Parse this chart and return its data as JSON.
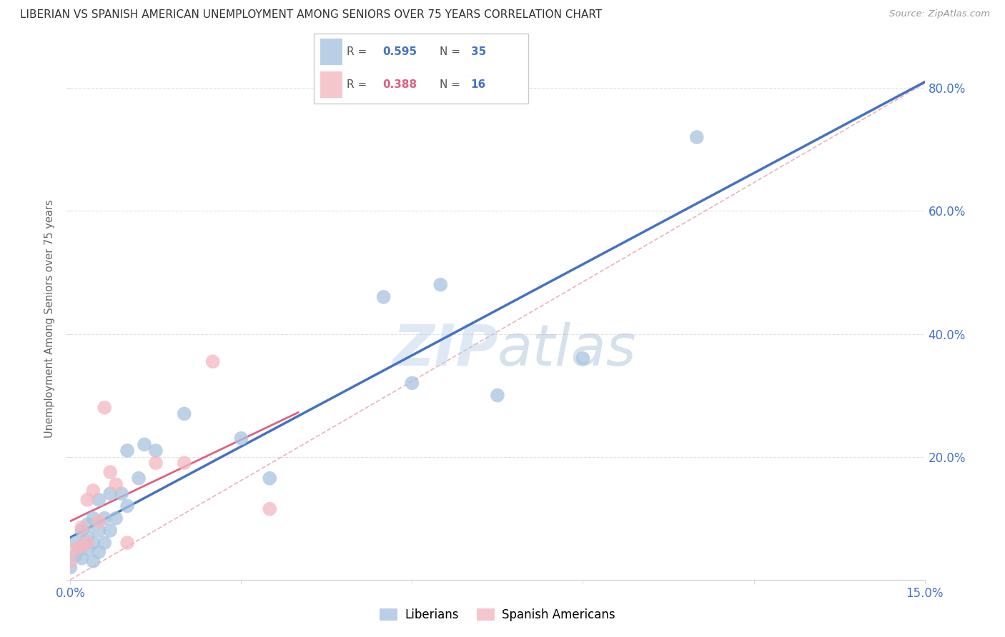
{
  "title": "LIBERIAN VS SPANISH AMERICAN UNEMPLOYMENT AMONG SENIORS OVER 75 YEARS CORRELATION CHART",
  "source": "Source: ZipAtlas.com",
  "ylabel": "Unemployment Among Seniors over 75 years",
  "xlim": [
    0.0,
    0.15
  ],
  "ylim": [
    0.0,
    0.85
  ],
  "watermark": "ZIPatlas",
  "liberian_R": 0.595,
  "liberian_N": 35,
  "spanish_R": 0.388,
  "spanish_N": 16,
  "liberian_color": "#a8c4e0",
  "spanish_color": "#f4b8c1",
  "liberian_trend_color": "#4472c4",
  "spanish_trend_color": "#e06080",
  "ref_line_color": "#e8a0a8",
  "axis_color": "#4472c4",
  "liberian_points_x": [
    0.0,
    0.001,
    0.001,
    0.002,
    0.002,
    0.002,
    0.003,
    0.003,
    0.003,
    0.004,
    0.004,
    0.004,
    0.005,
    0.005,
    0.005,
    0.006,
    0.006,
    0.007,
    0.007,
    0.008,
    0.009,
    0.01,
    0.01,
    0.012,
    0.013,
    0.015,
    0.02,
    0.03,
    0.035,
    0.055,
    0.06,
    0.065,
    0.075,
    0.09,
    0.11
  ],
  "liberian_points_y": [
    0.02,
    0.04,
    0.06,
    0.035,
    0.055,
    0.08,
    0.05,
    0.07,
    0.09,
    0.03,
    0.06,
    0.1,
    0.045,
    0.08,
    0.13,
    0.06,
    0.1,
    0.08,
    0.14,
    0.1,
    0.14,
    0.12,
    0.21,
    0.165,
    0.22,
    0.21,
    0.27,
    0.23,
    0.165,
    0.46,
    0.32,
    0.48,
    0.3,
    0.36,
    0.72
  ],
  "spanish_points_x": [
    0.0,
    0.001,
    0.002,
    0.002,
    0.003,
    0.003,
    0.004,
    0.005,
    0.006,
    0.007,
    0.008,
    0.01,
    0.015,
    0.02,
    0.025,
    0.035
  ],
  "spanish_points_y": [
    0.03,
    0.05,
    0.055,
    0.085,
    0.06,
    0.13,
    0.145,
    0.095,
    0.28,
    0.175,
    0.155,
    0.06,
    0.19,
    0.19,
    0.355,
    0.115
  ],
  "background_color": "#ffffff",
  "grid_color": "#e0e0e0"
}
